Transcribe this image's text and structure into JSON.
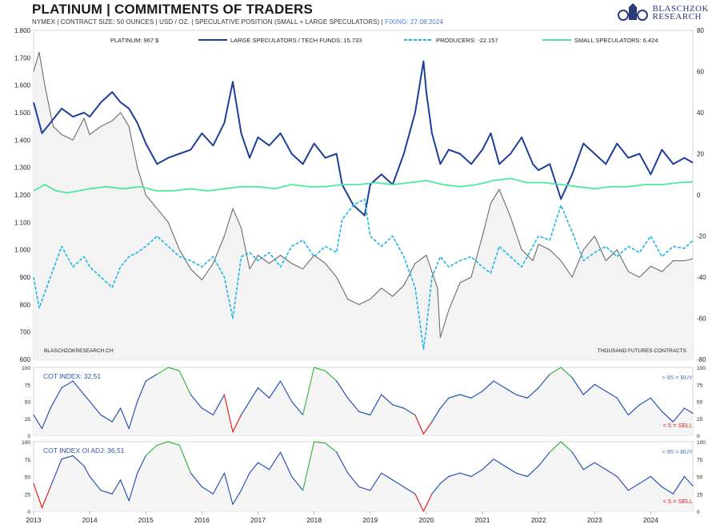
{
  "header": {
    "title": "PLATINUM  |  COMMITMENTS OF TRADERS",
    "subtitle": "NYMEX  |  CONTRACT SIZE: 50 OUNCES  |  USD / OZ.  |  SPECULATIVE POSITION (SMALL + LARGE SPECULATORS)  |",
    "fixing": "FIXING: 27.08.2024",
    "logo_line1": "BLASCHZOK",
    "logo_line2": "RESEARCH"
  },
  "colors": {
    "platinum": "#6b6b6b",
    "large_specs": "#1d3f9a",
    "producers": "#1eb6e4",
    "small_specs": "#4ee8a0",
    "cot_line": "#2d55b3",
    "buy_zone": "#3db54a",
    "sell_zone": "#e3211c",
    "buy_label": "#4a78c9",
    "sell_label": "#e3211c"
  },
  "chart_data": [
    {
      "type": "line",
      "panel": "main",
      "legend": [
        "PLATINUM: 967 $",
        "LARGE SPECULATORS / TECH FUNDS: 15.733",
        "PRODUCERS: -22.157",
        "SMALL SPECULATORS: 6.424"
      ],
      "source_label": "BLASCHZOKRESEARCH.CH",
      "unit_label": "THOUSAND  FUTURES CONTRACTS",
      "left_axis": {
        "ylim": [
          600,
          1800
        ],
        "ticks": [
          "600",
          "700",
          "800",
          "900",
          "1.000",
          "1.100",
          "1.200",
          "1.300",
          "1.400",
          "1.500",
          "1.600",
          "1.700",
          "1.800"
        ]
      },
      "right_axis": {
        "ylim": [
          -80,
          80
        ],
        "ticks": [
          "-80",
          "-60",
          "-40",
          "-20",
          "0",
          "20",
          "40",
          "60",
          "80"
        ]
      },
      "x_ticks": [
        "2013",
        "2014",
        "2015",
        "2016",
        "2017",
        "2018",
        "2019",
        "2020",
        "2021",
        "2022",
        "2023",
        "2024"
      ],
      "x_range": [
        2013.0,
        2024.75
      ],
      "series": [
        {
          "name": "PLATINUM",
          "axis": "left",
          "x": [
            2013.0,
            2013.1,
            2013.2,
            2013.35,
            2013.5,
            2013.7,
            2013.9,
            2014.0,
            2014.2,
            2014.4,
            2014.55,
            2014.7,
            2014.85,
            2015.0,
            2015.2,
            2015.4,
            2015.6,
            2015.8,
            2016.0,
            2016.2,
            2016.4,
            2016.55,
            2016.7,
            2016.85,
            2017.0,
            2017.2,
            2017.4,
            2017.6,
            2017.8,
            2018.0,
            2018.2,
            2018.4,
            2018.6,
            2018.8,
            2019.0,
            2019.2,
            2019.4,
            2019.6,
            2019.8,
            2020.0,
            2020.2,
            2020.25,
            2020.4,
            2020.6,
            2020.8,
            2021.0,
            2021.15,
            2021.3,
            2021.5,
            2021.7,
            2021.9,
            2022.0,
            2022.2,
            2022.4,
            2022.6,
            2022.8,
            2023.0,
            2023.2,
            2023.4,
            2023.6,
            2023.8,
            2024.0,
            2024.2,
            2024.4,
            2024.6,
            2024.75
          ],
          "values": [
            1650,
            1720,
            1600,
            1450,
            1420,
            1400,
            1480,
            1420,
            1450,
            1470,
            1500,
            1450,
            1300,
            1200,
            1150,
            1100,
            1000,
            930,
            890,
            950,
            1050,
            1150,
            1080,
            930,
            980,
            950,
            980,
            950,
            930,
            980,
            950,
            900,
            820,
            800,
            820,
            860,
            830,
            870,
            950,
            980,
            860,
            680,
            780,
            880,
            900,
            1050,
            1170,
            1220,
            1120,
            1000,
            960,
            1020,
            1000,
            960,
            900,
            1000,
            1050,
            960,
            1000,
            920,
            900,
            940,
            920,
            960,
            960,
            967
          ]
        },
        {
          "name": "LARGE SPECULATORS / TECH FUNDS",
          "axis": "right",
          "x": [
            2013.0,
            2013.15,
            2013.3,
            2013.5,
            2013.7,
            2013.9,
            2014.0,
            2014.2,
            2014.4,
            2014.55,
            2014.7,
            2014.85,
            2015.0,
            2015.2,
            2015.4,
            2015.6,
            2015.8,
            2016.0,
            2016.2,
            2016.4,
            2016.55,
            2016.7,
            2016.85,
            2017.0,
            2017.2,
            2017.4,
            2017.6,
            2017.8,
            2018.0,
            2018.2,
            2018.4,
            2018.5,
            2018.7,
            2018.9,
            2019.0,
            2019.2,
            2019.4,
            2019.6,
            2019.8,
            2019.95,
            2020.0,
            2020.1,
            2020.25,
            2020.4,
            2020.6,
            2020.8,
            2021.0,
            2021.15,
            2021.3,
            2021.5,
            2021.7,
            2021.9,
            2022.0,
            2022.2,
            2022.4,
            2022.6,
            2022.8,
            2023.0,
            2023.2,
            2023.4,
            2023.6,
            2023.8,
            2024.0,
            2024.2,
            2024.4,
            2024.6,
            2024.75
          ],
          "values": [
            45,
            30,
            35,
            42,
            38,
            40,
            38,
            45,
            50,
            45,
            42,
            35,
            25,
            15,
            18,
            20,
            22,
            30,
            24,
            35,
            55,
            30,
            18,
            28,
            24,
            30,
            20,
            15,
            25,
            18,
            20,
            5,
            -5,
            -10,
            5,
            10,
            5,
            20,
            40,
            65,
            50,
            30,
            15,
            22,
            20,
            15,
            22,
            30,
            15,
            20,
            28,
            15,
            12,
            15,
            -2,
            10,
            25,
            20,
            15,
            25,
            18,
            20,
            10,
            22,
            15,
            18,
            15.7
          ]
        },
        {
          "name": "PRODUCERS",
          "axis": "right",
          "x": [
            2013.0,
            2013.1,
            2013.3,
            2013.5,
            2013.7,
            2013.9,
            2014.0,
            2014.2,
            2014.4,
            2014.55,
            2014.7,
            2014.85,
            2015.0,
            2015.2,
            2015.4,
            2015.6,
            2015.8,
            2016.0,
            2016.2,
            2016.4,
            2016.55,
            2016.7,
            2016.85,
            2017.0,
            2017.2,
            2017.4,
            2017.6,
            2017.8,
            2018.0,
            2018.2,
            2018.4,
            2018.5,
            2018.7,
            2018.9,
            2019.0,
            2019.2,
            2019.4,
            2019.6,
            2019.8,
            2019.95,
            2020.0,
            2020.1,
            2020.25,
            2020.4,
            2020.6,
            2020.8,
            2021.0,
            2021.15,
            2021.3,
            2021.5,
            2021.7,
            2021.9,
            2022.0,
            2022.2,
            2022.4,
            2022.6,
            2022.8,
            2023.0,
            2023.2,
            2023.4,
            2023.6,
            2023.8,
            2024.0,
            2024.2,
            2024.4,
            2024.6,
            2024.75
          ],
          "values": [
            -40,
            -55,
            -40,
            -25,
            -35,
            -30,
            -35,
            -40,
            -45,
            -35,
            -30,
            -28,
            -25,
            -20,
            -25,
            -30,
            -32,
            -35,
            -30,
            -40,
            -60,
            -30,
            -28,
            -32,
            -28,
            -35,
            -25,
            -22,
            -30,
            -25,
            -28,
            -12,
            -5,
            -2,
            -20,
            -25,
            -20,
            -30,
            -45,
            -75,
            -65,
            -40,
            -30,
            -35,
            -32,
            -30,
            -35,
            -38,
            -25,
            -30,
            -35,
            -25,
            -20,
            -22,
            -5,
            -18,
            -32,
            -28,
            -25,
            -30,
            -25,
            -28,
            -20,
            -30,
            -25,
            -26,
            -22.2
          ]
        },
        {
          "name": "SMALL SPECULATORS",
          "axis": "right",
          "x": [
            2013.0,
            2013.2,
            2013.4,
            2013.6,
            2013.8,
            2014.0,
            2014.3,
            2014.6,
            2014.9,
            2015.2,
            2015.5,
            2015.8,
            2016.1,
            2016.4,
            2016.7,
            2017.0,
            2017.3,
            2017.6,
            2017.9,
            2018.2,
            2018.5,
            2018.8,
            2019.1,
            2019.4,
            2019.7,
            2020.0,
            2020.3,
            2020.6,
            2020.9,
            2021.2,
            2021.5,
            2021.8,
            2022.1,
            2022.4,
            2022.7,
            2023.0,
            2023.3,
            2023.6,
            2023.9,
            2024.2,
            2024.5,
            2024.75
          ],
          "values": [
            2,
            5,
            2,
            1,
            2,
            3,
            4,
            3,
            4,
            2,
            2,
            3,
            2,
            3,
            4,
            4,
            3,
            5,
            4,
            4,
            5,
            5,
            6,
            5,
            6,
            7,
            5,
            4,
            5,
            7,
            8,
            6,
            6,
            5,
            4,
            3,
            4,
            4,
            5,
            5,
            6,
            6.4
          ]
        }
      ]
    },
    {
      "type": "line",
      "panel": "cot_index",
      "label": "COT INDEX: 32,51",
      "buy_label": "> 95 = BUY",
      "sell_label": "< 5 = SELL",
      "ylim": [
        0,
        100
      ],
      "ticks": [
        "0",
        "25",
        "50",
        "75",
        "100"
      ],
      "x": [
        2013.0,
        2013.15,
        2013.3,
        2013.5,
        2013.7,
        2013.9,
        2014.0,
        2014.2,
        2014.4,
        2014.55,
        2014.7,
        2014.85,
        2015.0,
        2015.2,
        2015.4,
        2015.6,
        2015.8,
        2016.0,
        2016.2,
        2016.4,
        2016.55,
        2016.7,
        2016.85,
        2017.0,
        2017.2,
        2017.4,
        2017.6,
        2017.8,
        2018.0,
        2018.2,
        2018.4,
        2018.6,
        2018.8,
        2019.0,
        2019.2,
        2019.4,
        2019.6,
        2019.8,
        2019.95,
        2020.1,
        2020.25,
        2020.4,
        2020.6,
        2020.8,
        2021.0,
        2021.2,
        2021.4,
        2021.6,
        2021.8,
        2022.0,
        2022.2,
        2022.4,
        2022.6,
        2022.8,
        2023.0,
        2023.2,
        2023.4,
        2023.6,
        2023.8,
        2024.0,
        2024.2,
        2024.4,
        2024.6,
        2024.75
      ],
      "values": [
        30,
        10,
        40,
        70,
        80,
        60,
        50,
        30,
        20,
        40,
        10,
        50,
        80,
        90,
        100,
        95,
        60,
        40,
        30,
        60,
        5,
        30,
        50,
        70,
        55,
        80,
        50,
        30,
        100,
        95,
        80,
        55,
        35,
        30,
        60,
        45,
        40,
        30,
        2,
        20,
        40,
        55,
        60,
        55,
        65,
        80,
        70,
        60,
        55,
        70,
        90,
        100,
        85,
        60,
        75,
        65,
        55,
        30,
        45,
        55,
        35,
        20,
        40,
        32.51
      ]
    },
    {
      "type": "line",
      "panel": "cot_index_oi_adj",
      "label": "COT INDEX OI ADJ: 36,51",
      "buy_label": "> 95 = BUY",
      "sell_label": "< 5 = SELL",
      "ylim": [
        0,
        100
      ],
      "ticks": [
        "0",
        "25",
        "50",
        "75",
        "100"
      ],
      "x": [
        2013.0,
        2013.15,
        2013.3,
        2013.5,
        2013.7,
        2013.9,
        2014.0,
        2014.2,
        2014.4,
        2014.55,
        2014.7,
        2014.85,
        2015.0,
        2015.2,
        2015.4,
        2015.6,
        2015.8,
        2016.0,
        2016.2,
        2016.4,
        2016.55,
        2016.7,
        2016.85,
        2017.0,
        2017.2,
        2017.4,
        2017.6,
        2017.8,
        2018.0,
        2018.2,
        2018.4,
        2018.6,
        2018.8,
        2019.0,
        2019.2,
        2019.4,
        2019.6,
        2019.8,
        2019.95,
        2020.1,
        2020.25,
        2020.4,
        2020.6,
        2020.8,
        2021.0,
        2021.2,
        2021.4,
        2021.6,
        2021.8,
        2022.0,
        2022.2,
        2022.4,
        2022.6,
        2022.8,
        2023.0,
        2023.2,
        2023.4,
        2023.6,
        2023.8,
        2024.0,
        2024.2,
        2024.4,
        2024.6,
        2024.75
      ],
      "values": [
        40,
        5,
        35,
        75,
        80,
        65,
        50,
        30,
        25,
        45,
        15,
        55,
        80,
        95,
        100,
        95,
        55,
        35,
        25,
        55,
        10,
        30,
        55,
        70,
        60,
        85,
        50,
        30,
        100,
        98,
        85,
        55,
        35,
        30,
        55,
        45,
        35,
        25,
        0,
        25,
        40,
        50,
        55,
        50,
        60,
        75,
        65,
        55,
        50,
        65,
        85,
        100,
        85,
        60,
        70,
        60,
        50,
        30,
        40,
        50,
        35,
        25,
        50,
        36.51
      ]
    }
  ]
}
